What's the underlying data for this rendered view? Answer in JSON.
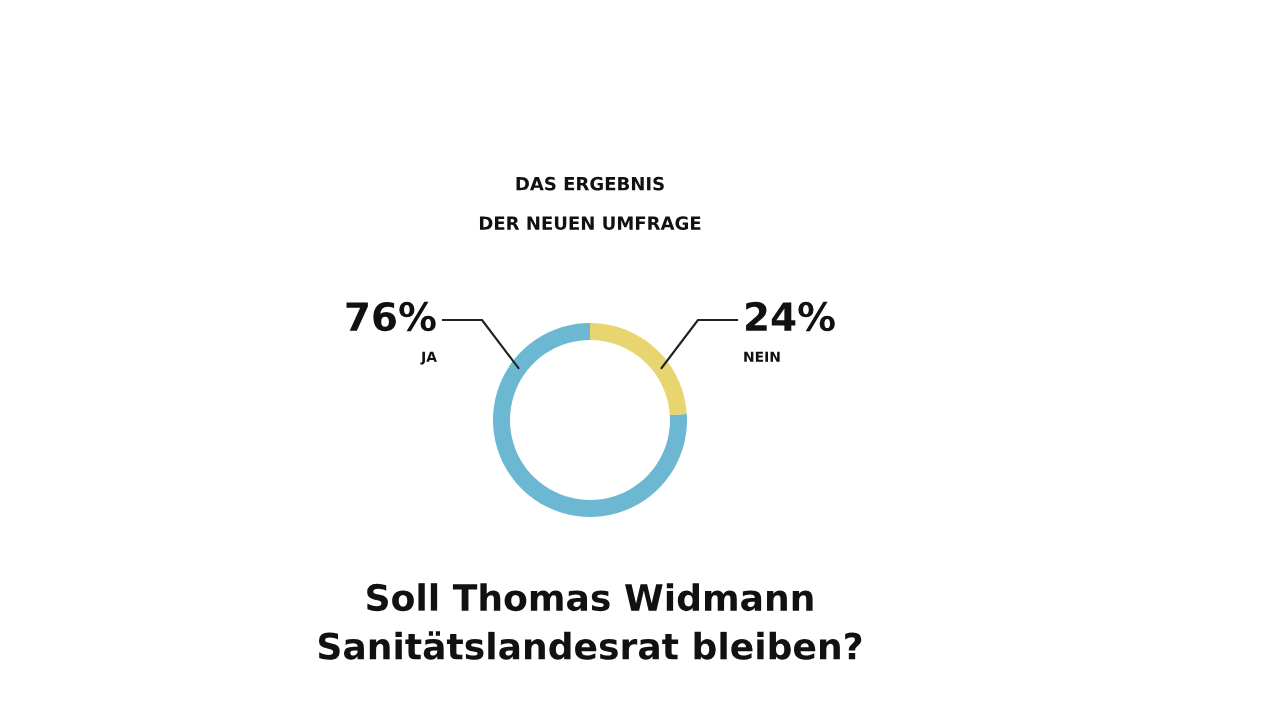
{
  "chart_data": {
    "type": "donut",
    "title": "DAS ERGEBNIS\nDER NEUEN UMFRAGE",
    "categories": [
      "JA",
      "NEIN"
    ],
    "values": [
      76,
      24
    ],
    "colors": [
      "#6cb8d3",
      "#e9d56f"
    ],
    "value_labels": [
      "76%",
      "24%"
    ],
    "annotations": [
      "Soll Thomas Widmann\nSanitätslandesrat bleiben?"
    ]
  }
}
